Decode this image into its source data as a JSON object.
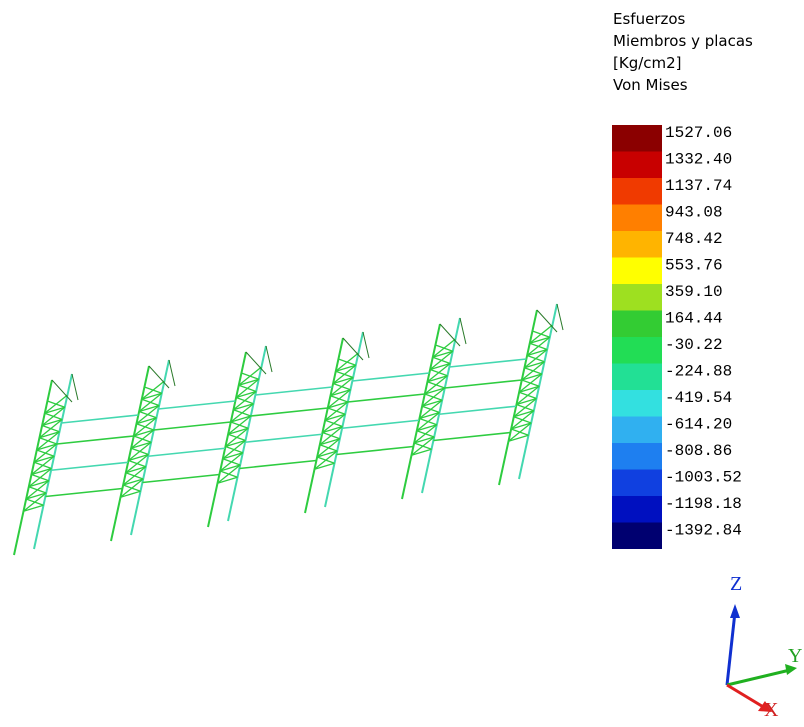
{
  "legend": {
    "title_lines": [
      "Esfuerzos",
      "Miembros y placas",
      "[Kg/cm2]",
      "Von Mises"
    ],
    "entries": [
      {
        "label": "1527.06",
        "color": "#8b0000"
      },
      {
        "label": "1332.40",
        "color": "#c80000"
      },
      {
        "label": "1137.74",
        "color": "#f03a00"
      },
      {
        "label": "943.08",
        "color": "#ff7f00"
      },
      {
        "label": "748.42",
        "color": "#ffb400"
      },
      {
        "label": "553.76",
        "color": "#ffff00"
      },
      {
        "label": "359.10",
        "color": "#9ee020"
      },
      {
        "label": "164.44",
        "color": "#33cc33"
      },
      {
        "label": "-30.22",
        "color": "#22dd55"
      },
      {
        "label": "-224.88",
        "color": "#22e095"
      },
      {
        "label": "-419.54",
        "color": "#33e0e0"
      },
      {
        "label": "-614.20",
        "color": "#30b0f0"
      },
      {
        "label": "-808.86",
        "color": "#1e7ff0"
      },
      {
        "label": "-1003.52",
        "color": "#1040e0"
      },
      {
        "label": "-1198.18",
        "color": "#0010c0"
      },
      {
        "label": "-1392.84",
        "color": "#000070"
      }
    ]
  },
  "axes": {
    "z": "Z",
    "y": "Y",
    "x": "X"
  }
}
